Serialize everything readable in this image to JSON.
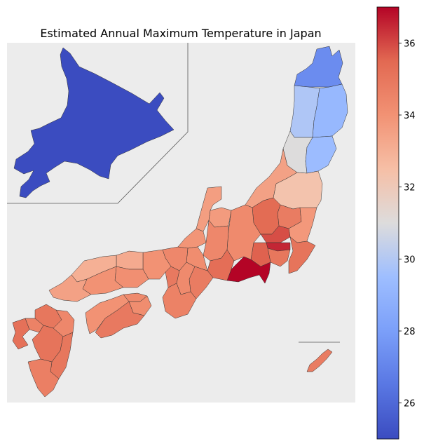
{
  "chart_data": {
    "type": "choropleth",
    "title": "Estimated Annual Maximum Temperature in Japan",
    "colormap": "coolwarm",
    "vmin": 25.0,
    "vmax": 37.0,
    "colorbar_ticks": [
      26,
      28,
      30,
      32,
      34,
      36
    ],
    "colorbar_tick_labels": [
      "26",
      "28",
      "30",
      "32",
      "34",
      "36"
    ],
    "background_color": "#ececec",
    "regions": [
      {
        "name": "Hokkaido",
        "value": 25.0
      },
      {
        "name": "Aomori",
        "value": 27.3
      },
      {
        "name": "Iwate",
        "value": 29.2
      },
      {
        "name": "Akita",
        "value": 29.9
      },
      {
        "name": "Miyagi",
        "value": 29.4
      },
      {
        "name": "Yamagata",
        "value": 31.0
      },
      {
        "name": "Fukushima",
        "value": 32.3
      },
      {
        "name": "Niigata",
        "value": 33.5
      },
      {
        "name": "Tochigi",
        "value": 34.8
      },
      {
        "name": "Gunma",
        "value": 35.4
      },
      {
        "name": "Ibaraki",
        "value": 33.8
      },
      {
        "name": "Saitama",
        "value": 35.9
      },
      {
        "name": "Tokyo",
        "value": 36.5
      },
      {
        "name": "Chiba",
        "value": 35.1
      },
      {
        "name": "Kanagawa",
        "value": 35.0
      },
      {
        "name": "Yamanashi",
        "value": 35.6
      },
      {
        "name": "Shizuoka",
        "value": 37.0
      },
      {
        "name": "Nagano",
        "value": 34.3
      },
      {
        "name": "Toyama",
        "value": 33.7
      },
      {
        "name": "Ishikawa",
        "value": 33.6
      },
      {
        "name": "Fukui",
        "value": 33.9
      },
      {
        "name": "Gifu",
        "value": 34.4
      },
      {
        "name": "Aichi",
        "value": 35.3
      },
      {
        "name": "Mie",
        "value": 34.8
      },
      {
        "name": "Shiga",
        "value": 34.2
      },
      {
        "name": "Kyoto",
        "value": 34.4
      },
      {
        "name": "Osaka",
        "value": 34.9
      },
      {
        "name": "Hyogo",
        "value": 34.0
      },
      {
        "name": "Nara",
        "value": 34.3
      },
      {
        "name": "Wakayama",
        "value": 34.6
      },
      {
        "name": "Tottori",
        "value": 33.2
      },
      {
        "name": "Shimane",
        "value": 33.0
      },
      {
        "name": "Okayama",
        "value": 34.1
      },
      {
        "name": "Hiroshima",
        "value": 34.0
      },
      {
        "name": "Yamaguchi",
        "value": 33.5
      },
      {
        "name": "Kagawa",
        "value": 34.3
      },
      {
        "name": "Tokushima",
        "value": 34.2
      },
      {
        "name": "Ehime",
        "value": 34.0
      },
      {
        "name": "Kochi",
        "value": 34.9
      },
      {
        "name": "Fukuoka",
        "value": 35.0
      },
      {
        "name": "Saga",
        "value": 34.6
      },
      {
        "name": "Nagasaki",
        "value": 35.2
      },
      {
        "name": "Kumamoto",
        "value": 35.1
      },
      {
        "name": "Oita",
        "value": 34.4
      },
      {
        "name": "Miyazaki",
        "value": 35.0
      },
      {
        "name": "Kagoshima",
        "value": 34.7
      },
      {
        "name": "Okinawa",
        "value": 34.8
      }
    ]
  }
}
